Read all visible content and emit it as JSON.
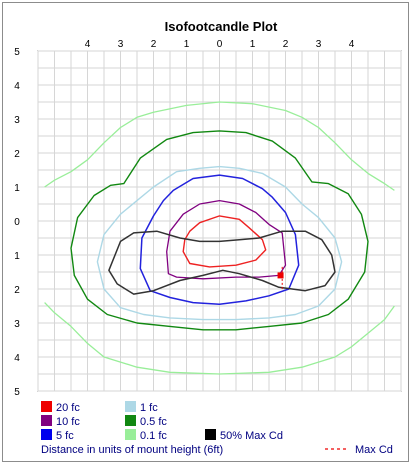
{
  "chart_data": {
    "type": "line",
    "title": "Isofootcandle Plot",
    "x_ticks": [
      {
        "label": "4",
        "x": -4
      },
      {
        "label": "3",
        "x": -3
      },
      {
        "label": "2",
        "x": -2
      },
      {
        "label": "1",
        "x": -1
      },
      {
        "label": "0",
        "x": 0
      },
      {
        "label": "1",
        "x": 1
      },
      {
        "label": "2",
        "x": 2
      },
      {
        "label": "3",
        "x": 3
      },
      {
        "label": "4",
        "x": 4
      }
    ],
    "y_ticks": [
      {
        "label": "5",
        "y": 5
      },
      {
        "label": "4",
        "y": 4
      },
      {
        "label": "3",
        "y": 3
      },
      {
        "label": "2",
        "y": 2
      },
      {
        "label": "1",
        "y": 1
      },
      {
        "label": "0",
        "y": 0
      },
      {
        "label": "1",
        "y": -1
      },
      {
        "label": "2",
        "y": -2
      },
      {
        "label": "3",
        "y": -3
      },
      {
        "label": "4",
        "y": -4
      },
      {
        "label": "5",
        "y": -5
      }
    ],
    "xlim": [
      -5.5,
      5.5
    ],
    "ylim": [
      -5,
      5
    ],
    "grid": true,
    "series": [
      {
        "name": "0.1 fc",
        "color": "#99ee99",
        "width": 1.3,
        "closed": false,
        "points": [
          [
            -5.3,
            1.0
          ],
          [
            -5.0,
            1.2
          ],
          [
            -4.5,
            1.45
          ],
          [
            -4.0,
            1.8
          ],
          [
            -3.5,
            2.3
          ],
          [
            -3.0,
            2.75
          ],
          [
            -2.5,
            3.05
          ],
          [
            -2.0,
            3.2
          ],
          [
            -1.0,
            3.4
          ],
          [
            0.0,
            3.5
          ],
          [
            1.0,
            3.45
          ],
          [
            2.0,
            3.25
          ],
          [
            2.5,
            3.05
          ],
          [
            3.0,
            2.75
          ],
          [
            3.5,
            2.3
          ],
          [
            4.0,
            1.8
          ],
          [
            4.5,
            1.4
          ],
          [
            5.0,
            1.1
          ],
          [
            5.3,
            0.9
          ]
        ]
      },
      {
        "name": "0.1 fc",
        "color": "#99ee99",
        "width": 1.3,
        "closed": false,
        "points": [
          [
            -5.3,
            -2.4
          ],
          [
            -5.0,
            -2.7
          ],
          [
            -4.5,
            -3.1
          ],
          [
            -4.0,
            -3.6
          ],
          [
            -3.5,
            -4.0
          ],
          [
            -2.5,
            -4.3
          ],
          [
            -1.5,
            -4.45
          ],
          [
            0.0,
            -4.5
          ],
          [
            1.5,
            -4.45
          ],
          [
            2.5,
            -4.3
          ],
          [
            3.5,
            -4.0
          ],
          [
            4.0,
            -3.7
          ],
          [
            4.5,
            -3.3
          ],
          [
            5.0,
            -2.9
          ],
          [
            5.3,
            -2.5
          ]
        ]
      },
      {
        "name": "0.5 fc",
        "color": "#118811",
        "width": 1.4,
        "closed": true,
        "points": [
          [
            -2.9,
            1.1
          ],
          [
            -2.4,
            1.85
          ],
          [
            -1.6,
            2.4
          ],
          [
            -0.8,
            2.6
          ],
          [
            0.0,
            2.65
          ],
          [
            0.8,
            2.6
          ],
          [
            1.6,
            2.35
          ],
          [
            2.3,
            1.85
          ],
          [
            2.8,
            1.15
          ],
          [
            3.3,
            1.1
          ],
          [
            3.9,
            0.8
          ],
          [
            4.3,
            0.2
          ],
          [
            4.5,
            -0.6
          ],
          [
            4.4,
            -1.5
          ],
          [
            3.9,
            -2.3
          ],
          [
            3.3,
            -2.75
          ],
          [
            2.5,
            -3.0
          ],
          [
            1.5,
            -3.1
          ],
          [
            0.5,
            -3.2
          ],
          [
            -0.5,
            -3.2
          ],
          [
            -1.5,
            -3.1
          ],
          [
            -2.5,
            -3.0
          ],
          [
            -3.4,
            -2.75
          ],
          [
            -4.0,
            -2.3
          ],
          [
            -4.4,
            -1.6
          ],
          [
            -4.5,
            -0.8
          ],
          [
            -4.3,
            0.1
          ],
          [
            -3.8,
            0.75
          ],
          [
            -3.3,
            1.05
          ]
        ]
      },
      {
        "name": "1 fc",
        "color": "#add8e6",
        "width": 1.4,
        "closed": true,
        "points": [
          [
            -2.5,
            0.6
          ],
          [
            -2.0,
            1.0
          ],
          [
            -1.3,
            1.45
          ],
          [
            -0.6,
            1.55
          ],
          [
            0.0,
            1.6
          ],
          [
            0.6,
            1.55
          ],
          [
            1.3,
            1.4
          ],
          [
            2.0,
            1.0
          ],
          [
            2.5,
            0.5
          ],
          [
            3.0,
            0.1
          ],
          [
            3.5,
            -0.5
          ],
          [
            3.7,
            -1.2
          ],
          [
            3.5,
            -2.0
          ],
          [
            3.0,
            -2.5
          ],
          [
            2.3,
            -2.75
          ],
          [
            1.5,
            -2.85
          ],
          [
            0.5,
            -2.9
          ],
          [
            -0.5,
            -2.9
          ],
          [
            -1.5,
            -2.85
          ],
          [
            -2.3,
            -2.75
          ],
          [
            -3.0,
            -2.55
          ],
          [
            -3.5,
            -2.0
          ],
          [
            -3.7,
            -1.2
          ],
          [
            -3.5,
            -0.4
          ],
          [
            -3.0,
            0.2
          ]
        ]
      },
      {
        "name": "5 fc",
        "color": "#2222dd",
        "width": 1.5,
        "closed": true,
        "points": [
          [
            -1.7,
            0.6
          ],
          [
            -1.4,
            0.9
          ],
          [
            -0.8,
            1.25
          ],
          [
            0.0,
            1.35
          ],
          [
            0.7,
            1.25
          ],
          [
            1.3,
            0.95
          ],
          [
            1.6,
            0.7
          ],
          [
            2.0,
            0.25
          ],
          [
            2.3,
            -0.4
          ],
          [
            2.4,
            -1.3
          ],
          [
            2.1,
            -2.0
          ],
          [
            1.5,
            -2.2
          ],
          [
            0.8,
            -2.35
          ],
          [
            0.0,
            -2.45
          ],
          [
            -0.8,
            -2.4
          ],
          [
            -1.5,
            -2.25
          ],
          [
            -2.1,
            -2.05
          ],
          [
            -2.4,
            -1.4
          ],
          [
            -2.35,
            -0.5
          ],
          [
            -2.0,
            0.15
          ]
        ]
      },
      {
        "name": "10 fc",
        "color": "#800080",
        "width": 1.3,
        "closed": true,
        "points": [
          [
            -1.1,
            0.2
          ],
          [
            -0.6,
            0.5
          ],
          [
            0.0,
            0.6
          ],
          [
            0.6,
            0.5
          ],
          [
            1.1,
            0.25
          ],
          [
            1.5,
            -0.1
          ],
          [
            1.9,
            -0.35
          ],
          [
            2.0,
            -1.3
          ],
          [
            1.8,
            -1.6
          ],
          [
            1.2,
            -1.65
          ],
          [
            0.5,
            -1.65
          ],
          [
            -0.5,
            -1.7
          ],
          [
            -1.3,
            -1.65
          ],
          [
            -1.55,
            -1.55
          ],
          [
            -1.6,
            -0.9
          ],
          [
            -1.5,
            -0.3
          ]
        ]
      },
      {
        "name": "20 fc",
        "color": "#ee2222",
        "width": 1.4,
        "closed": true,
        "points": [
          [
            -0.9,
            -0.3
          ],
          [
            -0.6,
            -0.05
          ],
          [
            0.0,
            0.15
          ],
          [
            0.6,
            0.05
          ],
          [
            0.9,
            -0.2
          ],
          [
            1.3,
            -0.55
          ],
          [
            1.4,
            -0.85
          ],
          [
            1.1,
            -1.15
          ],
          [
            0.5,
            -1.3
          ],
          [
            -0.3,
            -1.35
          ],
          [
            -0.9,
            -1.25
          ],
          [
            -1.1,
            -0.9
          ],
          [
            -1.05,
            -0.55
          ]
        ]
      },
      {
        "name": "50% Max Cd",
        "color": "#333333",
        "width": 1.5,
        "closed": true,
        "points": [
          [
            -3.0,
            -0.6
          ],
          [
            -2.6,
            -0.35
          ],
          [
            -1.9,
            -0.3
          ],
          [
            -1.2,
            -0.5
          ],
          [
            -0.6,
            -0.6
          ],
          [
            0.0,
            -0.6
          ],
          [
            0.6,
            -0.55
          ],
          [
            1.2,
            -0.5
          ],
          [
            1.9,
            -0.3
          ],
          [
            2.6,
            -0.3
          ],
          [
            3.1,
            -0.55
          ],
          [
            3.4,
            -1.0
          ],
          [
            3.5,
            -1.5
          ],
          [
            3.2,
            -1.9
          ],
          [
            2.6,
            -2.05
          ],
          [
            1.8,
            -1.95
          ],
          [
            1.3,
            -1.75
          ],
          [
            0.6,
            -1.55
          ],
          [
            0.1,
            -1.45
          ],
          [
            -0.5,
            -1.6
          ],
          [
            -1.2,
            -1.75
          ],
          [
            -2.0,
            -2.05
          ],
          [
            -2.6,
            -2.15
          ],
          [
            -3.1,
            -1.85
          ],
          [
            -3.35,
            -1.45
          ]
        ]
      }
    ],
    "max_cd_marker": {
      "x": 1.85,
      "y": -1.6,
      "color": "#ee0000"
    },
    "max_cd_line": {
      "x": 1.9,
      "y1": -1.35,
      "y2": -2.0,
      "color": "#ee0000"
    },
    "legend": [
      {
        "label": "20 fc",
        "color": "#ee0000"
      },
      {
        "label": "1 fc",
        "color": "#add8e6"
      },
      {
        "label": "10 fc",
        "color": "#800080"
      },
      {
        "label": "0.5 fc",
        "color": "#118811"
      },
      {
        "label": "5 fc",
        "color": "#0000ee"
      },
      {
        "label": "0.1 fc",
        "color": "#99ee99"
      },
      {
        "label": "50% Max Cd",
        "color": "#000000"
      }
    ],
    "footnote": "Distance in units of mount height (6ft)",
    "max_cd_label": "Max Cd",
    "max_cd_label_color": "#ee0000"
  }
}
